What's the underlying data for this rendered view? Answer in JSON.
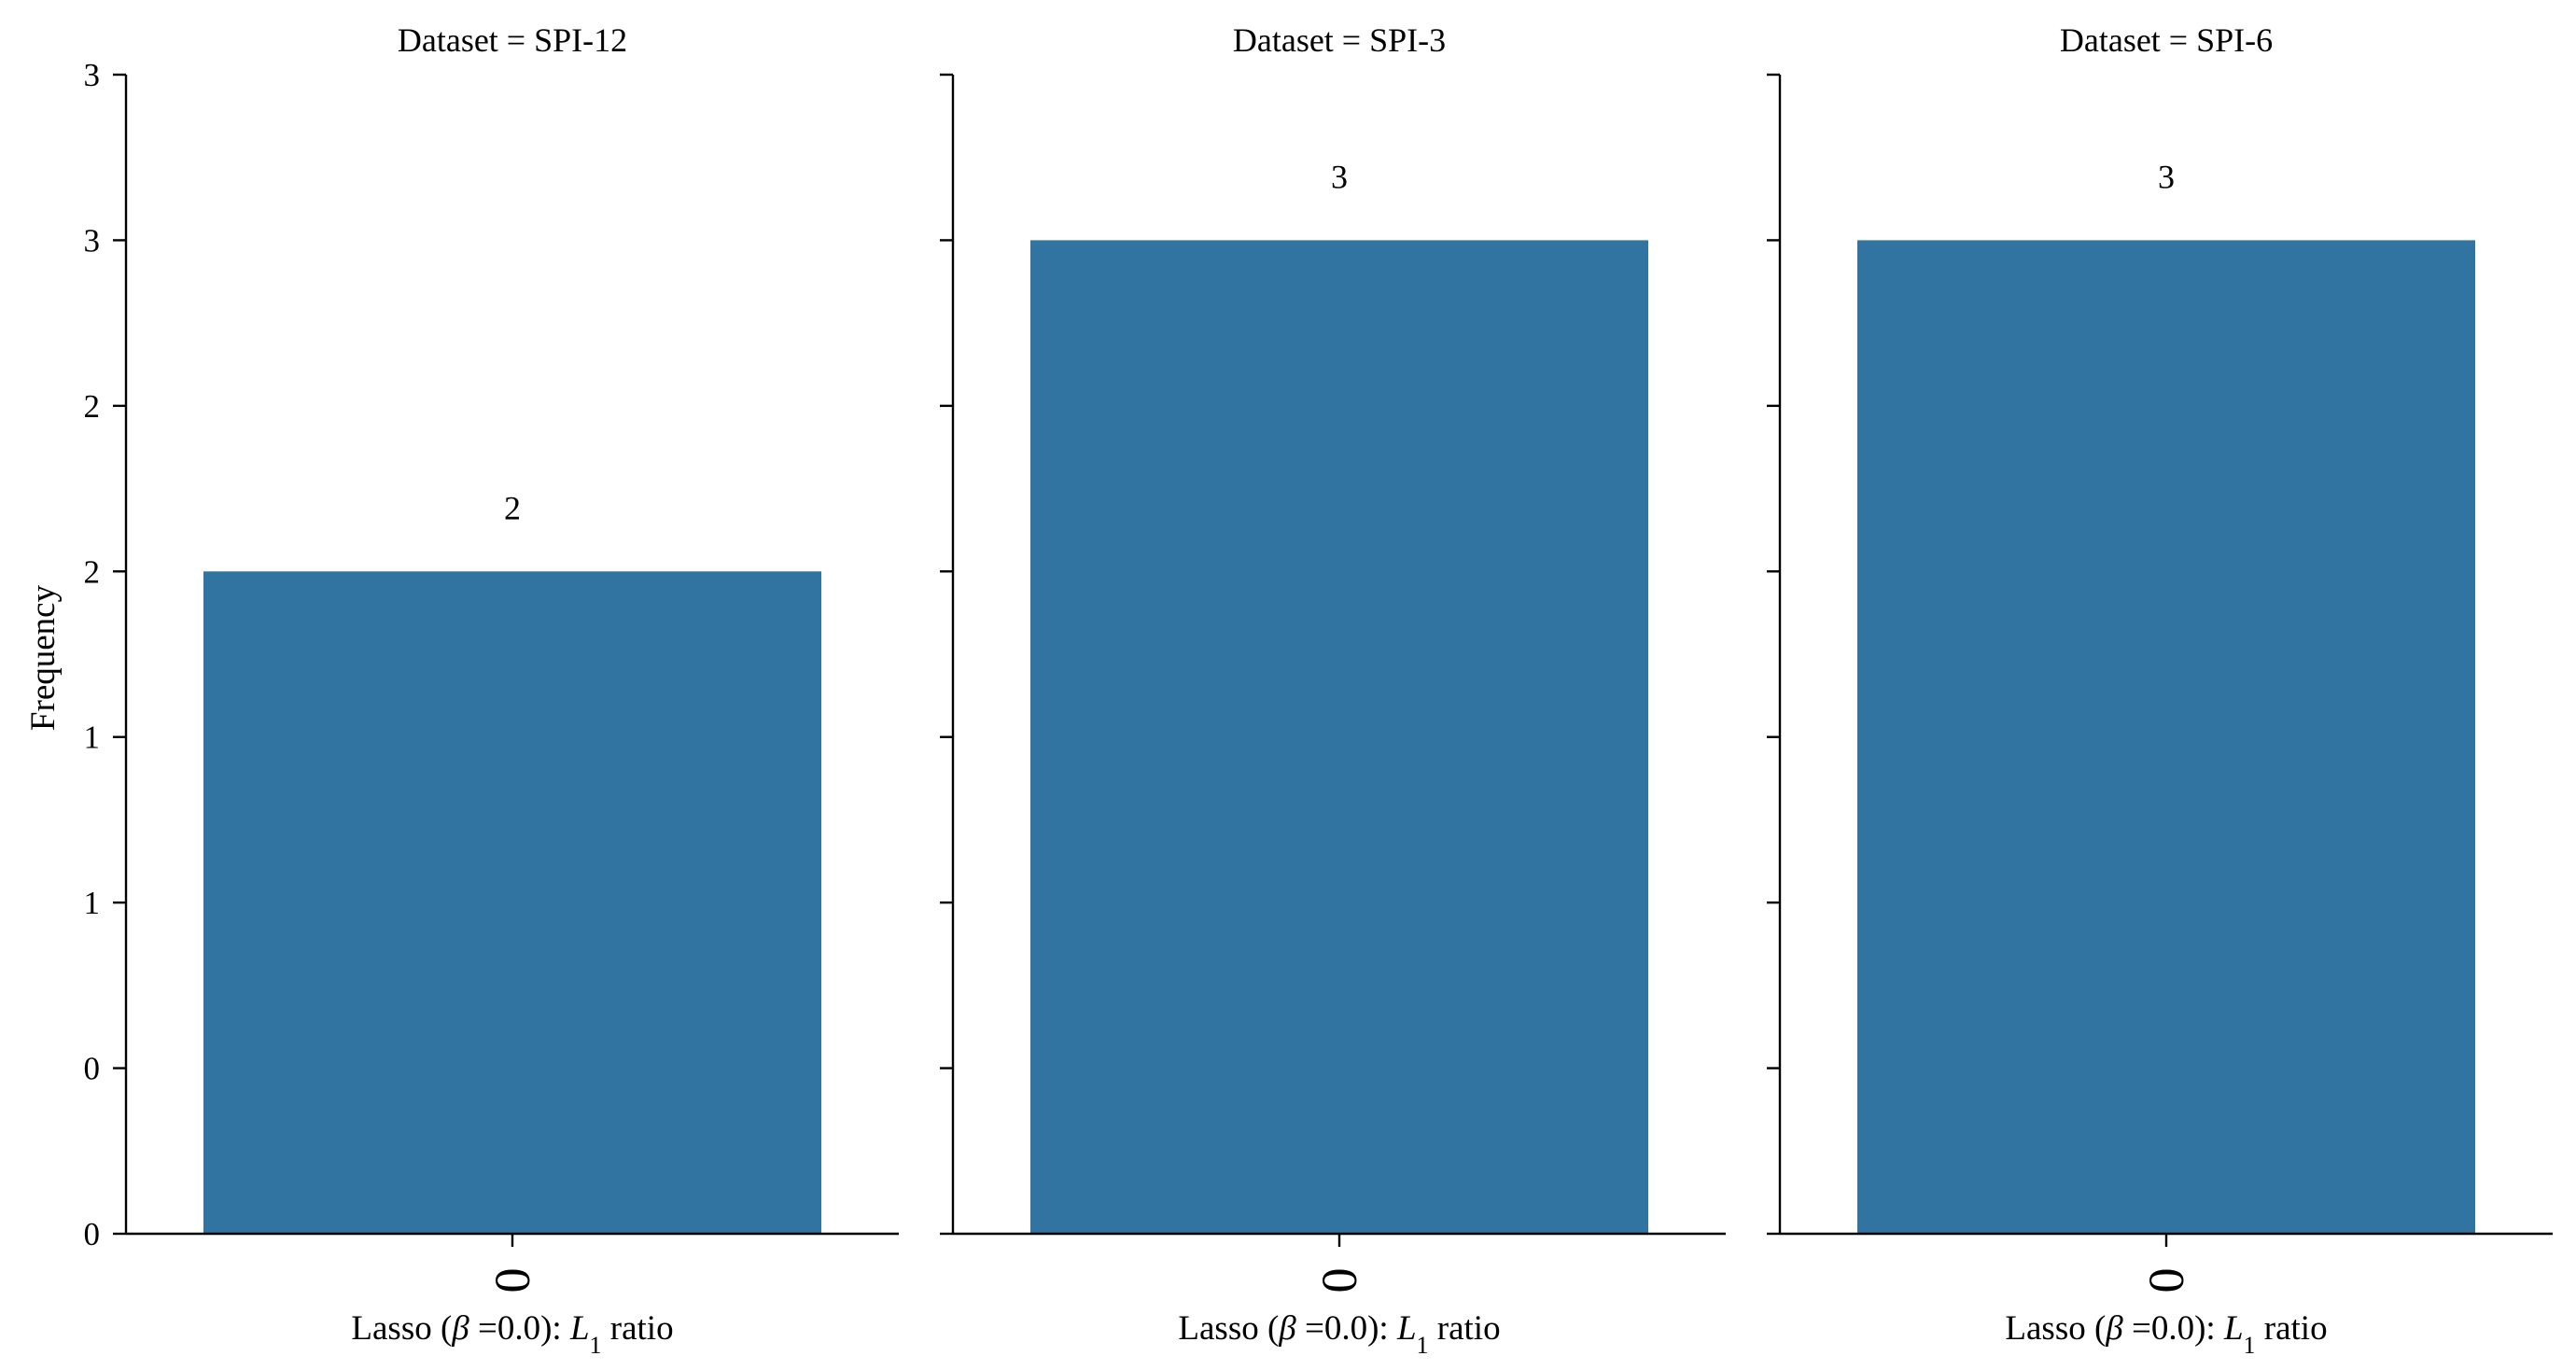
{
  "chart_data": {
    "type": "bar",
    "ylabel": "Frequency",
    "ytick_labels": [
      "0",
      "0",
      "1",
      "1",
      "2",
      "2",
      "3",
      "3"
    ],
    "ylim": [
      0,
      3.5
    ],
    "bar_color": "#3274a1",
    "panels": [
      {
        "title": "Dataset = SPI-12",
        "categories": [
          "0"
        ],
        "values": [
          2
        ],
        "bar_labels": [
          "2"
        ],
        "xlabel": {
          "pre": "Lasso (",
          "beta": "β",
          "mid": " =0.0): ",
          "L": "L",
          "sub": "1",
          "post": " ratio"
        }
      },
      {
        "title": "Dataset = SPI-3",
        "categories": [
          "0"
        ],
        "values": [
          3
        ],
        "bar_labels": [
          "3"
        ],
        "xlabel": {
          "pre": "Lasso (",
          "beta": "β",
          "mid": " =0.0): ",
          "L": "L",
          "sub": "1",
          "post": " ratio"
        }
      },
      {
        "title": "Dataset = SPI-6",
        "categories": [
          "0"
        ],
        "values": [
          3
        ],
        "bar_labels": [
          "3"
        ],
        "xlabel": {
          "pre": "Lasso (",
          "beta": "β",
          "mid": " =0.0): ",
          "L": "L",
          "sub": "1",
          "post": " ratio"
        }
      }
    ]
  }
}
